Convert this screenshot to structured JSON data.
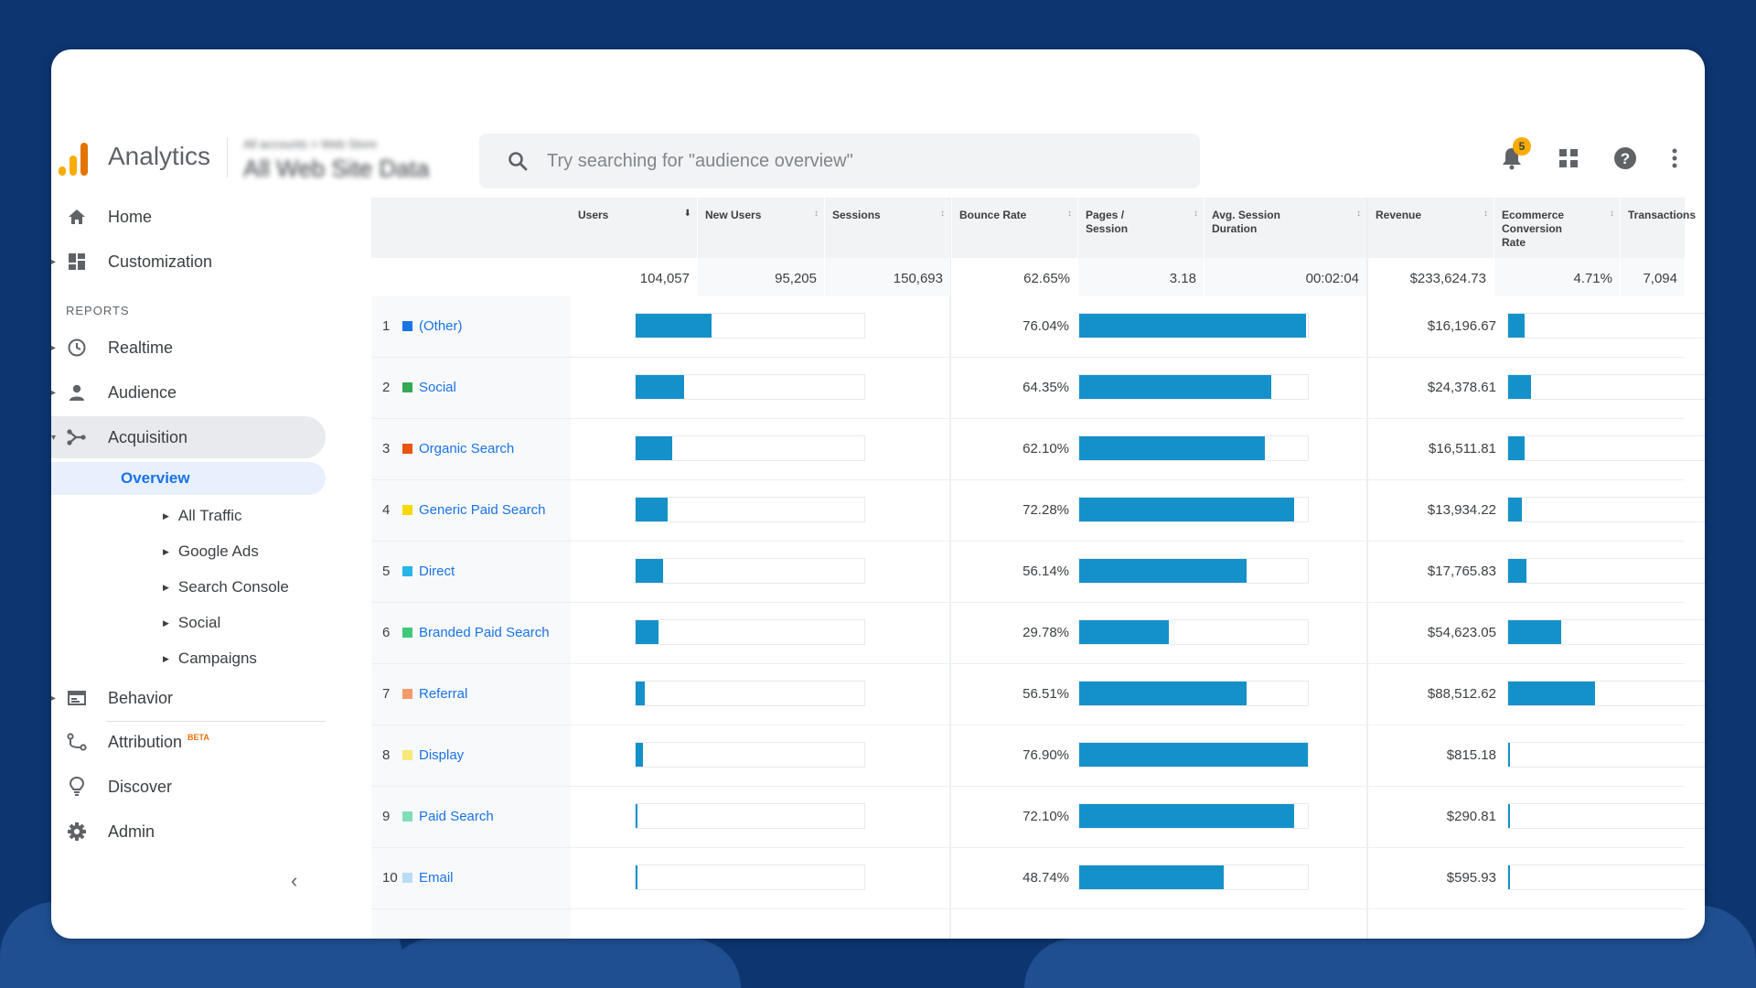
{
  "app": {
    "title": "Analytics",
    "account_path": "All accounts > Web Store",
    "view_name": "All Web Site Data"
  },
  "search": {
    "placeholder": "Try searching for \"audience overview\""
  },
  "header": {
    "notification_count": "5"
  },
  "sidebar": {
    "home": "Home",
    "customization": "Customization",
    "reports_label": "REPORTS",
    "realtime": "Realtime",
    "audience": "Audience",
    "acquisition": "Acquisition",
    "overview": "Overview",
    "sub_items": [
      "All Traffic",
      "Google Ads",
      "Search Console",
      "Social",
      "Campaigns"
    ],
    "behavior": "Behavior",
    "attribution": "Attribution",
    "beta": "BETA",
    "discover": "Discover",
    "admin": "Admin"
  },
  "table": {
    "headers": {
      "users": "Users",
      "new_users": "New Users",
      "sessions": "Sessions",
      "bounce_rate": "Bounce Rate",
      "pages_session": "Pages / Session",
      "avg_session": "Avg. Session Duration",
      "revenue": "Revenue",
      "ecom_rate": "Ecommerce Conversion Rate",
      "transactions": "Transactions"
    },
    "totals": {
      "users": "104,057",
      "new_users": "95,205",
      "sessions": "150,693",
      "bounce_rate": "62.65%",
      "pages_session": "3.18",
      "avg_session": "00:02:04",
      "revenue": "$233,624.73",
      "ecom_rate": "4.71%",
      "transactions": "7,094"
    },
    "rows": [
      {
        "rank": "1",
        "channel": "(Other)",
        "color": "#1a73e8",
        "users": "33,825",
        "bounce": "76.04%",
        "revenue": "$16,196.67",
        "acq_share": 0.33,
        "beh_share": 0.99,
        "conv_share": 0.07
      },
      {
        "rank": "2",
        "channel": "Social",
        "color": "#34a853",
        "users": "22,041",
        "bounce": "64.35%",
        "revenue": "$24,378.61",
        "acq_share": 0.21,
        "beh_share": 0.84,
        "conv_share": 0.1
      },
      {
        "rank": "3",
        "channel": "Organic Search",
        "color": "#e8550d",
        "users": "16,842",
        "bounce": "62.10%",
        "revenue": "$16,511.81",
        "acq_share": 0.16,
        "beh_share": 0.81,
        "conv_share": 0.07
      },
      {
        "rank": "4",
        "channel": "Generic Paid Search",
        "color": "#f5d90a",
        "users": "14,712",
        "bounce": "72.28%",
        "revenue": "$13,934.22",
        "acq_share": 0.14,
        "beh_share": 0.94,
        "conv_share": 0.06
      },
      {
        "rank": "5",
        "channel": "Direct",
        "color": "#26b5e8",
        "users": "12,252",
        "bounce": "56.14%",
        "revenue": "$17,765.83",
        "acq_share": 0.12,
        "beh_share": 0.73,
        "conv_share": 0.08
      },
      {
        "rank": "6",
        "channel": "Branded Paid Search",
        "color": "#3ec97a",
        "users": "10,771",
        "bounce": "29.78%",
        "revenue": "$54,623.05",
        "acq_share": 0.1,
        "beh_share": 0.39,
        "conv_share": 0.23
      },
      {
        "rank": "7",
        "channel": "Referral",
        "color": "#f29a6a",
        "users": "3,943",
        "bounce": "56.51%",
        "revenue": "$88,512.62",
        "acq_share": 0.04,
        "beh_share": 0.73,
        "conv_share": 0.38
      },
      {
        "rank": "8",
        "channel": "Display",
        "color": "#f7e87a",
        "users": "3,241",
        "bounce": "76.90%",
        "revenue": "$815.18",
        "acq_share": 0.03,
        "beh_share": 1.0,
        "conv_share": 0.005
      },
      {
        "rank": "9",
        "channel": "Paid Search",
        "color": "#7fe0b8",
        "users": "265",
        "bounce": "72.10%",
        "revenue": "$290.81",
        "acq_share": 0.005,
        "beh_share": 0.94,
        "conv_share": 0.003
      },
      {
        "rank": "10",
        "channel": "Email",
        "color": "#b8dcf5",
        "users": "147",
        "bounce": "48.74%",
        "revenue": "$595.93",
        "acq_share": 0.003,
        "beh_share": 0.63,
        "conv_share": 0.003
      }
    ]
  },
  "colors": {
    "bar": "#1591c9",
    "link": "#1a73e8",
    "background": "#0d3570"
  }
}
